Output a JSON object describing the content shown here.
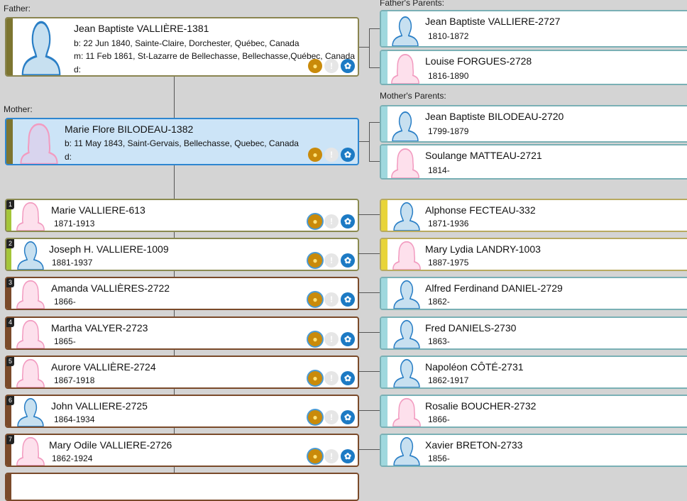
{
  "labels": {
    "father": "Father:",
    "mother": "Mother:",
    "fathers_parents": "Father's Parents:",
    "mothers_parents": "Mother's Parents:"
  },
  "father": {
    "name": "Jean Baptiste VALLIÈRE-1381",
    "birth": "b: 22 Jun 1840, Sainte-Claire, Dorchester, Québec, Canada",
    "marriage": "m: 11 Feb 1861, St-Lazarre de Bellechasse, Bellechasse,Québec, Canada",
    "death": "d:"
  },
  "mother": {
    "name": "Marie Flore BILODEAU-1382",
    "birth": "b: 11 May 1843, Saint-Gervais, Bellechasse, Quebec, Canada",
    "death": "d:"
  },
  "grandparents": [
    {
      "name": "Jean Baptiste VALLIERE-2727",
      "dates": "1810-1872",
      "sex": "m"
    },
    {
      "name": "Louise FORGUES-2728",
      "dates": "1816-1890",
      "sex": "f"
    },
    {
      "name": "Jean Baptiste BILODEAU-2720",
      "dates": "1799-1879",
      "sex": "m"
    },
    {
      "name": "Soulange MATTEAU-2721",
      "dates": "1814-",
      "sex": "f"
    }
  ],
  "children": [
    {
      "num": "1",
      "name": "Marie VALLIERE-613",
      "dates": "1871-1913",
      "sex": "f",
      "spouse": {
        "name": "Alphonse FECTEAU-332",
        "dates": "1871-1936",
        "sex": "m"
      }
    },
    {
      "num": "2",
      "name": "Joseph H. VALLIERE-1009",
      "dates": "1881-1937",
      "sex": "m",
      "spouse": {
        "name": "Mary Lydia LANDRY-1003",
        "dates": "1887-1975",
        "sex": "f"
      }
    },
    {
      "num": "3",
      "name": "Amanda VALLIÈRES-2722",
      "dates": "1866-",
      "sex": "f",
      "spouse": {
        "name": "Alfred Ferdinand DANIEL-2729",
        "dates": "1862-",
        "sex": "m"
      }
    },
    {
      "num": "4",
      "name": "Martha VALYER-2723",
      "dates": "1865-",
      "sex": "f",
      "spouse": {
        "name": "Fred DANIELS-2730",
        "dates": "1863-",
        "sex": "m"
      }
    },
    {
      "num": "5",
      "name": "Aurore VALLIÈRE-2724",
      "dates": "1867-1918",
      "sex": "f",
      "spouse": {
        "name": "Napoléon CÔTÉ-2731",
        "dates": "1862-1917",
        "sex": "m"
      }
    },
    {
      "num": "6",
      "name": "John VALLIERE-2725",
      "dates": "1864-1934",
      "sex": "m",
      "spouse": {
        "name": "Rosalie BOUCHER-2732",
        "dates": "1866-",
        "sex": "f"
      }
    },
    {
      "num": "7",
      "name": "Mary Odile VALLIERE-2726",
      "dates": "1862-1924",
      "sex": "f",
      "spouse": {
        "name": "Xavier BRETON-2733",
        "dates": "1856-",
        "sex": "m"
      }
    }
  ],
  "colors": {
    "olive": "#7d7530",
    "green": "#a4c639",
    "brown": "#7a4a2a",
    "yellow": "#e8d43a",
    "teal": "#9fd8de",
    "selected_bg": "#cce4f7",
    "selected_border": "#2e86d0"
  }
}
